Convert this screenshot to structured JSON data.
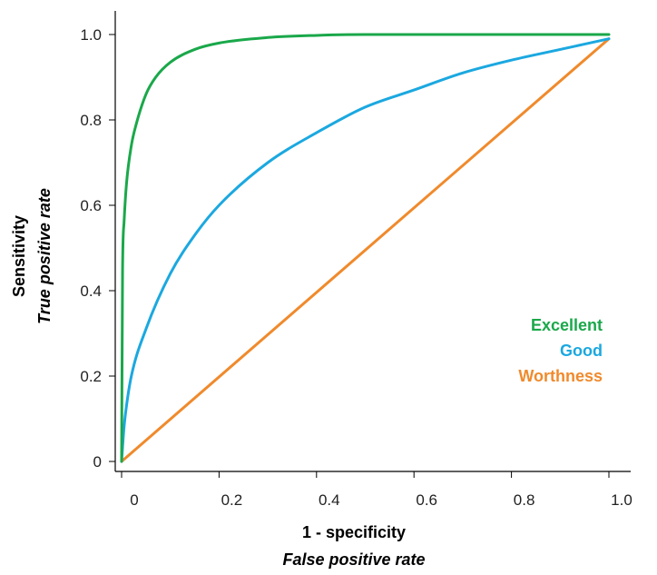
{
  "chart_data": {
    "type": "line",
    "xlabel": "1 - specificity",
    "xlabel_sub": "False positive rate",
    "ylabel": "Sensitivity",
    "ylabel_sub": "True positive rate",
    "xlim": [
      0,
      1
    ],
    "ylim": [
      0,
      1
    ],
    "x_ticks": [
      0,
      0.2,
      0.4,
      0.6,
      0.8,
      1.0
    ],
    "x_tick_labels": [
      "0",
      "0.2",
      "0.4",
      "0.6",
      "0.8",
      "1.0"
    ],
    "y_ticks": [
      0,
      0.2,
      0.4,
      0.6,
      0.8,
      1.0
    ],
    "y_tick_labels": [
      "0",
      "0.2",
      "0.4",
      "0.6",
      "0.8",
      "1.0"
    ],
    "grid": false,
    "legend_position": "bottom-right",
    "series": [
      {
        "name": "Excellent",
        "color": "#1aa84a",
        "x": [
          0,
          0.002,
          0.005,
          0.01,
          0.02,
          0.03,
          0.05,
          0.07,
          0.1,
          0.15,
          0.2,
          0.3,
          0.4,
          0.5,
          0.6,
          0.8,
          1.0
        ],
        "y": [
          0,
          0.45,
          0.56,
          0.65,
          0.74,
          0.79,
          0.86,
          0.9,
          0.935,
          0.965,
          0.98,
          0.993,
          0.998,
          1.0,
          1.0,
          1.0,
          1.0
        ]
      },
      {
        "name": "Good",
        "color": "#1ba8e0",
        "x": [
          0,
          0.005,
          0.01,
          0.02,
          0.05,
          0.1,
          0.15,
          0.2,
          0.3,
          0.4,
          0.5,
          0.6,
          0.7,
          0.8,
          0.9,
          1.0
        ],
        "y": [
          0,
          0.08,
          0.13,
          0.2,
          0.31,
          0.44,
          0.53,
          0.6,
          0.7,
          0.77,
          0.83,
          0.87,
          0.91,
          0.94,
          0.965,
          0.99
        ]
      },
      {
        "name": "Worthness",
        "color": "#f08a2c",
        "x": [
          0,
          1.0
        ],
        "y": [
          0,
          0.99
        ]
      }
    ]
  }
}
